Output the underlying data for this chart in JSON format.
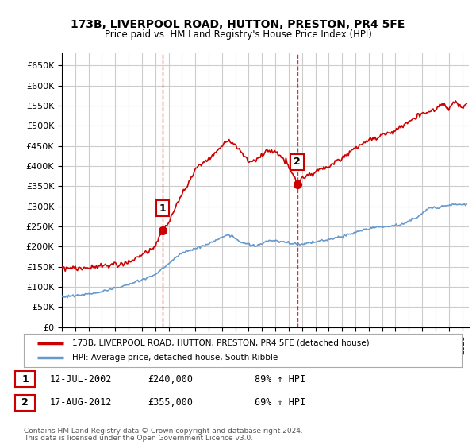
{
  "title": "173B, LIVERPOOL ROAD, HUTTON, PRESTON, PR4 5FE",
  "subtitle": "Price paid vs. HM Land Registry's House Price Index (HPI)",
  "ylim": [
    0,
    680000
  ],
  "yticks": [
    0,
    50000,
    100000,
    150000,
    200000,
    250000,
    300000,
    350000,
    400000,
    450000,
    500000,
    550000,
    600000,
    650000
  ],
  "xlim_start": 1995.0,
  "xlim_end": 2025.5,
  "sale1_x": 2002.53,
  "sale1_y": 240000,
  "sale1_label": "1",
  "sale2_x": 2012.63,
  "sale2_y": 355000,
  "sale2_label": "2",
  "red_line_color": "#cc0000",
  "blue_line_color": "#6699cc",
  "marker_color": "#cc0000",
  "vline_color": "#cc0000",
  "grid_color": "#cccccc",
  "background_color": "#ffffff",
  "legend_red_label": "173B, LIVERPOOL ROAD, HUTTON, PRESTON, PR4 5FE (detached house)",
  "legend_blue_label": "HPI: Average price, detached house, South Ribble",
  "table_row1": [
    "1",
    "12-JUL-2002",
    "£240,000",
    "89% ↑ HPI"
  ],
  "table_row2": [
    "2",
    "17-AUG-2012",
    "£355,000",
    "69% ↑ HPI"
  ],
  "footnote1": "Contains HM Land Registry data © Crown copyright and database right 2024.",
  "footnote2": "This data is licensed under the Open Government Licence v3.0."
}
